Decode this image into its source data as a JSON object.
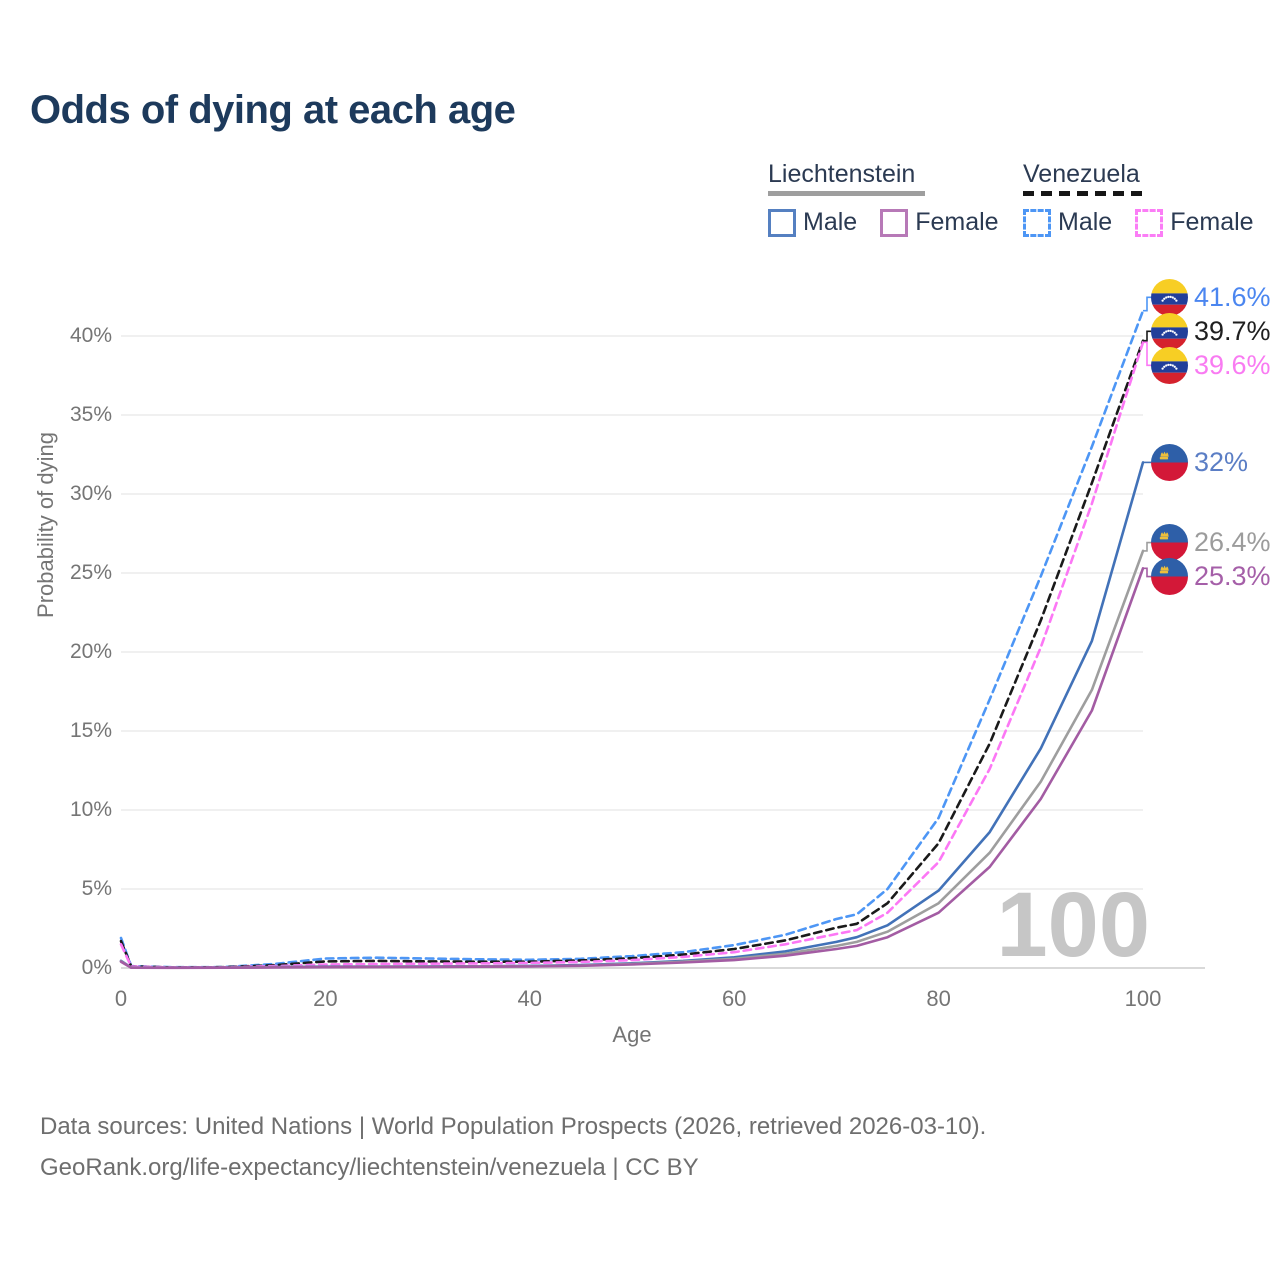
{
  "page": {
    "title": "Odds of dying at each age"
  },
  "colors": {
    "title_navy": "#1d3a5c",
    "axis_text_gray": "#757575",
    "grid_gray": "#ececec",
    "zero_axis_gray": "#d9d9d9",
    "watermark_gray": "#c6c6c6",
    "legend_text_navy": "#2b3a52"
  },
  "legend": {
    "groups": [
      {
        "country": "Liechtenstein",
        "line_style": "solid",
        "underline_color": "#9e9e9e",
        "items": [
          {
            "label": "Male",
            "color": "#5580c1",
            "dashed": false
          },
          {
            "label": "Female",
            "color": "#b779b7",
            "dashed": false
          }
        ]
      },
      {
        "country": "Venezuela",
        "line_style": "dashed",
        "underline_color": "#161616",
        "items": [
          {
            "label": "Male",
            "color": "#4d96f5",
            "dashed": true
          },
          {
            "label": "Female",
            "color": "#fb7df6",
            "dashed": true
          }
        ]
      }
    ]
  },
  "chart_data": {
    "type": "line",
    "title": "Odds of dying at each age",
    "xlabel": "Age",
    "ylabel": "Probability of dying",
    "xlim": [
      0,
      100
    ],
    "ylim_percent": [
      0,
      43
    ],
    "grid": "horizontal",
    "legend_position": "top-right",
    "watermark": "100",
    "x_tick_values": [
      0,
      20,
      40,
      60,
      80,
      100
    ],
    "x_tick_labels": [
      "0",
      "20",
      "40",
      "60",
      "80",
      "100"
    ],
    "y_tick_values": [
      0,
      5,
      10,
      15,
      20,
      25,
      30,
      35,
      40
    ],
    "y_tick_labels": [
      "0%",
      "5%",
      "10%",
      "15%",
      "20%",
      "25%",
      "30%",
      "35%",
      "40%"
    ],
    "x": [
      0,
      1,
      5,
      10,
      15,
      20,
      25,
      30,
      35,
      40,
      45,
      50,
      55,
      60,
      65,
      70,
      72,
      75,
      80,
      85,
      90,
      95,
      100
    ],
    "series": [
      {
        "name": "Venezuela Male",
        "country": "Venezuela",
        "sex": "Male",
        "color": "#4d96f5",
        "dashed": true,
        "end_label": "41.6%",
        "end_label_color": "#4b86f0",
        "values_percent": [
          1.9,
          0.12,
          0.05,
          0.06,
          0.25,
          0.6,
          0.65,
          0.6,
          0.55,
          0.52,
          0.58,
          0.75,
          1.0,
          1.45,
          2.1,
          3.1,
          3.4,
          5.0,
          9.5,
          17.0,
          24.8,
          33.0,
          41.6
        ]
      },
      {
        "name": "Venezuela Both sexes",
        "country": "Venezuela",
        "sex": "Both",
        "color": "#1a1a1a",
        "dashed": true,
        "end_label": "39.7%",
        "end_label_color": "#1f1f1f",
        "values_percent": [
          1.7,
          0.1,
          0.04,
          0.05,
          0.18,
          0.42,
          0.45,
          0.42,
          0.4,
          0.4,
          0.48,
          0.62,
          0.85,
          1.2,
          1.75,
          2.55,
          2.8,
          4.1,
          7.9,
          14.2,
          22.0,
          30.7,
          39.7
        ]
      },
      {
        "name": "Venezuela Female",
        "country": "Venezuela",
        "sex": "Female",
        "color": "#fc77f5",
        "dashed": true,
        "end_label": "39.6%",
        "end_label_color": "#f97bf2",
        "values_percent": [
          1.5,
          0.09,
          0.04,
          0.04,
          0.12,
          0.22,
          0.25,
          0.27,
          0.29,
          0.32,
          0.38,
          0.5,
          0.7,
          1.0,
          1.5,
          2.15,
          2.4,
          3.5,
          6.7,
          12.6,
          20.3,
          29.4,
          39.6
        ]
      },
      {
        "name": "Liechtenstein Male",
        "country": "Liechtenstein",
        "sex": "Male",
        "color": "#4272b8",
        "dashed": false,
        "end_label": "32%",
        "end_label_color": "#5b7ec5",
        "values_percent": [
          0.45,
          0.03,
          0.02,
          0.02,
          0.06,
          0.09,
          0.09,
          0.1,
          0.11,
          0.13,
          0.19,
          0.3,
          0.45,
          0.68,
          1.05,
          1.65,
          1.95,
          2.7,
          4.9,
          8.6,
          13.9,
          20.7,
          32.0
        ]
      },
      {
        "name": "Liechtenstein Both sexes",
        "country": "Liechtenstein",
        "sex": "Both",
        "color": "#9e9e9e",
        "dashed": false,
        "end_label": "26.4%",
        "end_label_color": "#9c9c9c",
        "values_percent": [
          0.42,
          0.03,
          0.02,
          0.02,
          0.05,
          0.07,
          0.08,
          0.08,
          0.1,
          0.11,
          0.16,
          0.26,
          0.4,
          0.58,
          0.9,
          1.4,
          1.65,
          2.3,
          4.1,
          7.3,
          11.8,
          17.6,
          26.4
        ]
      },
      {
        "name": "Liechtenstein Female",
        "country": "Liechtenstein",
        "sex": "Female",
        "color": "#a35ca3",
        "dashed": false,
        "end_label": "25.3%",
        "end_label_color": "#a55fa8",
        "values_percent": [
          0.4,
          0.02,
          0.01,
          0.02,
          0.04,
          0.05,
          0.06,
          0.07,
          0.08,
          0.1,
          0.14,
          0.22,
          0.35,
          0.5,
          0.78,
          1.2,
          1.4,
          1.95,
          3.5,
          6.4,
          10.7,
          16.3,
          25.3
        ]
      }
    ]
  },
  "footer": {
    "line1": "Data sources: United Nations | World Population Prospects (2026, retrieved 2026-03-10).",
    "line2": "GeoRank.org/life-expectancy/liechtenstein/venezuela | CC BY"
  }
}
